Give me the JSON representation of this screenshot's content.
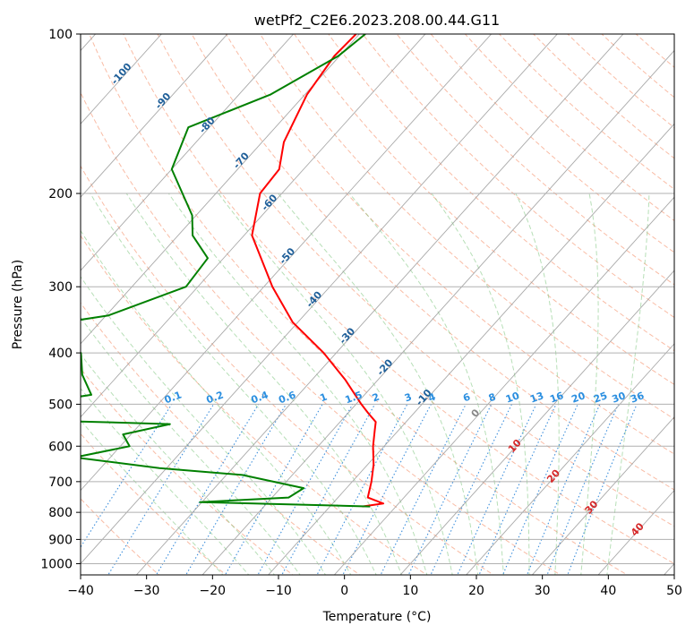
{
  "chart_data": {
    "type": "line",
    "title": "wetPf2_C2E6.2023.208.00.44.G11",
    "xlabel": "Temperature (°C)",
    "ylabel": "Pressure (hPa)",
    "xlim": [
      -40,
      50
    ],
    "ylim": [
      1050,
      100
    ],
    "y_scale": "log",
    "grid": true,
    "x_ticks": [
      "−40",
      "−30",
      "−20",
      "−10",
      "0",
      "10",
      "20",
      "30",
      "40",
      "50"
    ],
    "y_ticks": [
      {
        "p": 100,
        "label": "100"
      },
      {
        "p": 200,
        "label": "200"
      },
      {
        "p": 300,
        "label": "300"
      },
      {
        "p": 400,
        "label": "400"
      },
      {
        "p": 500,
        "label": "500"
      },
      {
        "p": 600,
        "label": "600"
      },
      {
        "p": 700,
        "label": "700"
      },
      {
        "p": 800,
        "label": "800"
      },
      {
        "p": 900,
        "label": "900"
      },
      {
        "p": 1000,
        "label": "1000"
      }
    ],
    "series": [
      {
        "color": "#ff0000",
        "points": [
          [
            -70.5,
            100
          ],
          [
            -70.8,
            110
          ],
          [
            -69.7,
            130
          ],
          [
            -66.7,
            160
          ],
          [
            -63.7,
            180
          ],
          [
            -63.3,
            200
          ],
          [
            -58.8,
            240
          ],
          [
            -48.7,
            300
          ],
          [
            -40.8,
            350
          ],
          [
            -31.9,
            400
          ],
          [
            -24.9,
            450
          ],
          [
            -19.2,
            500
          ],
          [
            -16.9,
            520
          ],
          [
            -14.6,
            540
          ],
          [
            -13.6,
            560
          ],
          [
            -11.7,
            600
          ],
          [
            -9.1,
            650
          ],
          [
            -7.1,
            700
          ],
          [
            -5.5,
            750
          ],
          [
            -2.3,
            770
          ],
          [
            -5.1,
            780
          ]
        ]
      },
      {
        "color": "#008000",
        "points": [
          [
            -69.1,
            100
          ],
          [
            -70.2,
            110
          ],
          [
            -75.2,
            130
          ],
          [
            -83.2,
            150
          ],
          [
            -80.0,
            180
          ],
          [
            -70.6,
            220
          ],
          [
            -67.8,
            240
          ],
          [
            -62.4,
            265
          ],
          [
            -61.8,
            300
          ],
          [
            -69.7,
            340
          ],
          [
            -80.9,
            360
          ],
          [
            -74.3,
            380
          ],
          [
            -68.7,
            400
          ],
          [
            -65.5,
            440
          ],
          [
            -61.4,
            480
          ],
          [
            -69.7,
            500
          ],
          [
            -89.0,
            505
          ],
          [
            -80.0,
            530
          ],
          [
            -45.5,
            545
          ],
          [
            -51.2,
            570
          ],
          [
            -48.6,
            600
          ],
          [
            -55.4,
            630
          ],
          [
            -41.1,
            660
          ],
          [
            -27.6,
            680
          ],
          [
            -16.5,
            720
          ],
          [
            -17.5,
            750
          ],
          [
            -30.3,
            765
          ],
          [
            -3.9,
            780
          ]
        ]
      }
    ],
    "background_lines": {
      "dry_adiabats": "dashed, light salmon",
      "moist_adiabats": "dashed, light green",
      "mixing_ratio": "dotted, blue",
      "isotherms": "solid, gray (skewed)"
    },
    "isotherm_labels": [
      "-100",
      "-90",
      "-80",
      "-70",
      "-60",
      "-50",
      "-40",
      "-30",
      "-20",
      "-10",
      "0",
      "10",
      "20",
      "30",
      "40"
    ],
    "mixing_ratio_labels": [
      "0.1",
      "0.2",
      "0.4",
      "0.6",
      "1",
      "1.5",
      "2",
      "3",
      "4",
      "6",
      "8",
      "10",
      "13",
      "16",
      "20",
      "25",
      "30",
      "36"
    ]
  }
}
